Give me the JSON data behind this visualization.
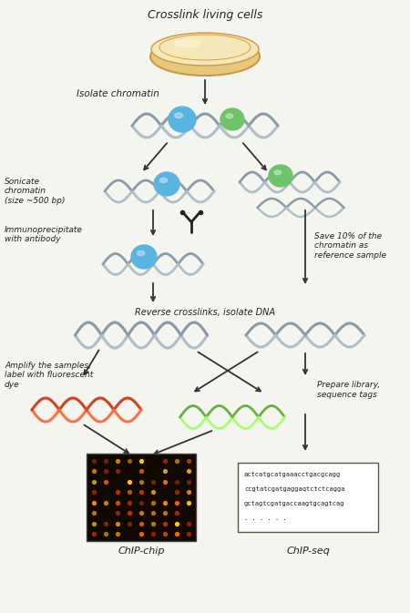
{
  "title": "Crosslink living cells",
  "bg_color": "#f5f5f0",
  "text_color": "#222222",
  "arrow_color": "#333333",
  "steps": {
    "crosslink_label": "Crosslink living cells",
    "isolate_label": "Isolate chromatin",
    "sonicate_label": "Sonicate\nchromatin\n(size ~500 bp)",
    "immunoprecipitate_label": "Immunoprecipitate\nwith antibody",
    "save_label": "Save 10% of the\nchromatin as\nreference sample",
    "reverse_label": "Reverse crosslinks, isolate DNA",
    "amplify_label": "Amplify the samples,\nlabel with fluorescent\ndye",
    "prepare_label": "Prepare library,\nsequence tags",
    "chipchip_label": "ChIP-chip",
    "chipseq_label": "ChIP-seq"
  },
  "seq_text_line1": "actcatgcatgaaacctgacgcagg",
  "seq_text_line2": "ccgtatcgatgaggaqtctctcagga",
  "seq_text_line3": "gctagtcgatgaccaagtgcagtcag",
  "seq_text_line4": ". . . . . .",
  "dna_gray": "#8a9baa",
  "dna_gray2": "#b0bec8",
  "blob_blue": "#5ab4e0",
  "blob_green": "#6dc46a",
  "red_dna": "#d44020",
  "green_dna": "#68b040"
}
